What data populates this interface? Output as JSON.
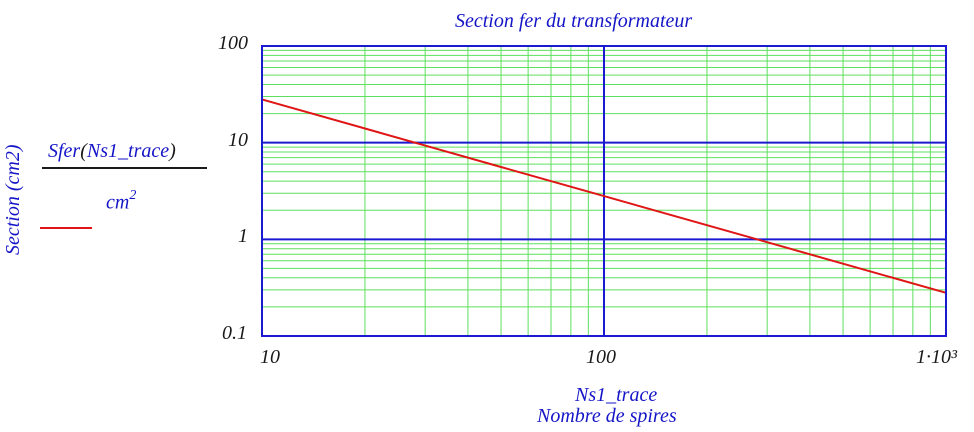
{
  "chart_data": {
    "type": "line",
    "title": "Section fer du transformateur",
    "xlabel": "Nombre de spires",
    "xvar": "Ns1_trace",
    "ylabel": "Section (cm2)",
    "x_scale": "log",
    "y_scale": "log",
    "xlim": [
      10,
      1000
    ],
    "ylim": [
      0.1,
      100
    ],
    "x_tick_labels": [
      "10",
      "100",
      "1·10³"
    ],
    "y_tick_labels": [
      "100",
      "10",
      "1",
      "0.1"
    ],
    "grid": true,
    "series": [
      {
        "name": "Sfer(Ns1_trace) / cm²",
        "color": "#e01515",
        "x": [
          10,
          20,
          30,
          50,
          100,
          200,
          300,
          500,
          1000
        ],
        "y": [
          28,
          14,
          9.33,
          5.6,
          2.8,
          1.4,
          0.933,
          0.56,
          0.28
        ]
      }
    ]
  },
  "legend": {
    "expr_func": "Sfer",
    "expr_paren_open": "(",
    "expr_arg": "Ns1_trace",
    "expr_paren_close": ")",
    "unit_base": "cm",
    "unit_exp": "2"
  },
  "colors": {
    "major_grid": "#1a1ad0",
    "minor_grid": "#5de05d",
    "frame": "#1a1ad0",
    "curve": "#e01515",
    "label": "#1515c8"
  }
}
